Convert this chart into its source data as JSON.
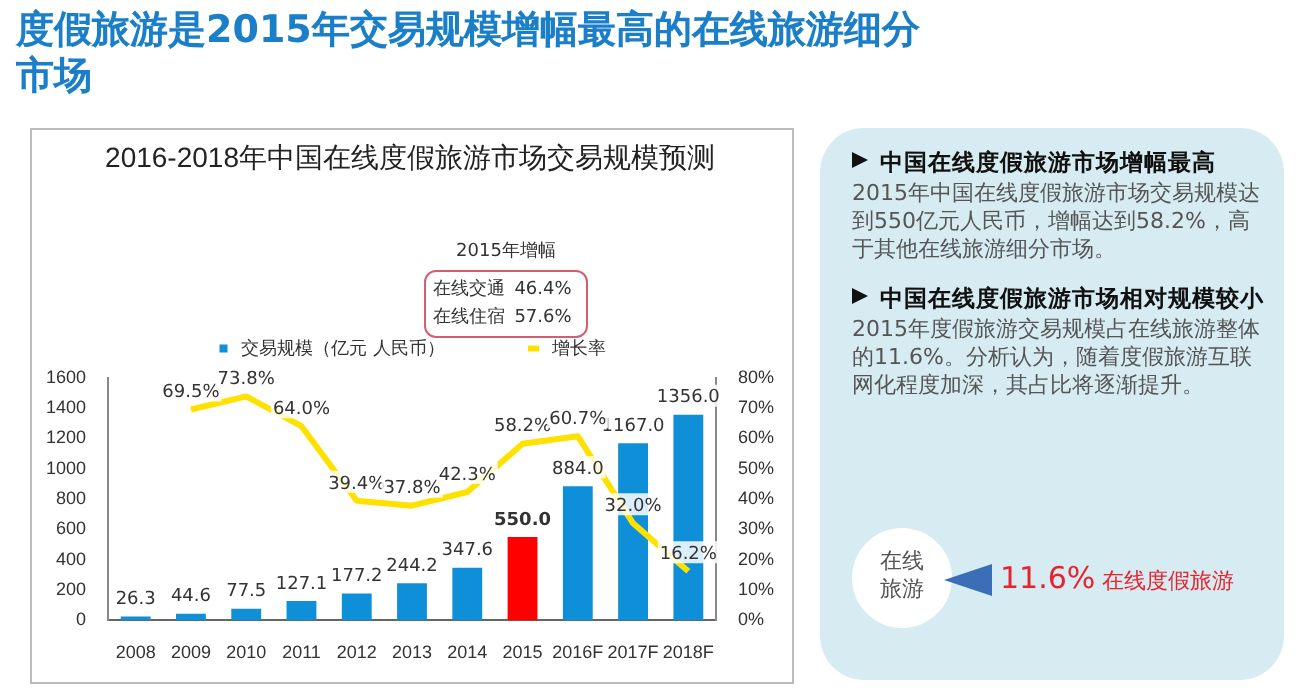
{
  "chart_data": {
    "type": "bar",
    "title": "度假旅游是2015年交易规模增幅最高的在线旅游细分市场",
    "subtitle": "2016-2018年中国在线度假旅游市场交易规模预测",
    "categories": [
      "2008",
      "2009",
      "2010",
      "2011",
      "2012",
      "2013",
      "2014",
      "2015",
      "2016F",
      "2017F",
      "2018F"
    ],
    "series": [
      {
        "name": "交易规模（亿元 人民币）",
        "type": "bar",
        "colors": [
          "#0f8fd8",
          "#0f8fd8",
          "#0f8fd8",
          "#0f8fd8",
          "#0f8fd8",
          "#0f8fd8",
          "#0f8fd8",
          "#ff0000",
          "#0f8fd8",
          "#0f8fd8",
          "#0f8fd8"
        ],
        "color": "#0f8fd8",
        "values": [
          26.3,
          44.6,
          77.5,
          127.1,
          177.2,
          244.2,
          347.6,
          550.0,
          884.0,
          1167.0,
          1356.0
        ],
        "value_labels": [
          "26.3",
          "44.6",
          "77.5",
          "127.1",
          "177.2",
          "244.2",
          "347.6",
          "550.0",
          "884.0",
          "1167.0",
          "1356.0"
        ]
      },
      {
        "name": "增长率",
        "type": "line",
        "axis": "y2",
        "color": "#ffe100",
        "values": [
          null,
          69.5,
          73.8,
          64.0,
          39.4,
          37.8,
          42.3,
          58.2,
          60.7,
          32.0,
          16.2
        ],
        "value_labels": [
          null,
          "69.5%",
          "73.8%",
          "64.0%",
          "39.4%",
          "37.8%",
          "42.3%",
          "58.2%",
          "60.7%",
          "32.0%",
          "16.2%"
        ]
      }
    ],
    "ylim": [
      0,
      1600
    ],
    "yticks": [
      0,
      200,
      400,
      600,
      800,
      1000,
      1200,
      1400,
      1600
    ],
    "y2lim": [
      0,
      80
    ],
    "y2ticks": [
      {
        "value": 0,
        "label": "0%"
      },
      {
        "value": 10,
        "label": "10%"
      },
      {
        "value": 20,
        "label": "20%"
      },
      {
        "value": 30,
        "label": "30%"
      },
      {
        "value": 40,
        "label": "40%"
      },
      {
        "value": 50,
        "label": "50%"
      },
      {
        "value": 60,
        "label": "60%"
      },
      {
        "value": 70,
        "label": "70%"
      },
      {
        "value": 80,
        "label": "80%"
      }
    ],
    "grid": false,
    "legend": "top",
    "marker": "none",
    "line_style": "solid",
    "annotations": [
      "2015年增幅",
      "在线交通",
      "46.4%",
      "在线住宿",
      "57.6%",
      "中国在线度假旅游市场增幅最高",
      "2015年中国在线度假旅游市场交易规模达到550亿元人民币，增幅达到58.2%，高于其他在线旅游细分市场。",
      "中国在线度假旅游市场相对规模较小",
      "2015年度假旅游交易规模占在线旅游整体的11.6%。分析认为，随着度假旅游互联网化程度加深，其占比将逐渐提升。",
      "在线旅游",
      "11.6%",
      "在线度假旅游"
    ]
  }
}
